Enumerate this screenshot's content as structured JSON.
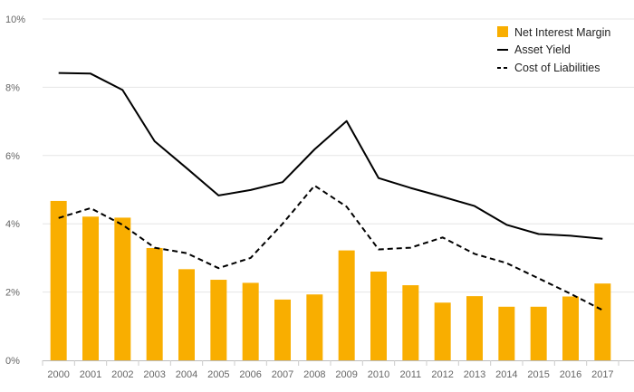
{
  "chart_data": {
    "type": "bar",
    "title": "",
    "xlabel": "",
    "ylabel": "",
    "ylim": [
      0,
      10
    ],
    "y_ticks": [
      "0%",
      "2%",
      "4%",
      "6%",
      "8%",
      "10%"
    ],
    "y_tick_values": [
      0,
      2,
      4,
      6,
      8,
      10
    ],
    "grid": true,
    "legend_position": "top-right",
    "categories": [
      "2000",
      "2001",
      "2002",
      "2003",
      "2004",
      "2005",
      "2006",
      "2007",
      "2008",
      "2009",
      "2010",
      "2011",
      "2012",
      "2013",
      "2014",
      "2015",
      "2016",
      "2017"
    ],
    "series": [
      {
        "name": "Net Interest Margin",
        "type": "bar",
        "color": "#F9AE00",
        "values": [
          4.67,
          4.21,
          4.18,
          3.29,
          2.67,
          2.36,
          2.27,
          1.78,
          1.93,
          3.22,
          2.6,
          2.2,
          1.69,
          1.88,
          1.57,
          1.57,
          1.87,
          2.25
        ]
      },
      {
        "name": "Asset Yield",
        "type": "line",
        "style": "solid",
        "color": "#000000",
        "values": [
          8.42,
          8.4,
          7.92,
          6.42,
          5.63,
          4.83,
          4.99,
          5.22,
          6.18,
          7.01,
          5.34,
          5.05,
          4.79,
          4.52,
          3.97,
          3.7,
          3.65,
          3.56
        ]
      },
      {
        "name": "Cost of Liabilities",
        "type": "line",
        "style": "dashed",
        "color": "#000000",
        "values": [
          4.17,
          4.46,
          3.97,
          3.3,
          3.14,
          2.7,
          3.0,
          4.0,
          5.12,
          4.5,
          3.25,
          3.3,
          3.6,
          3.12,
          2.85,
          2.4,
          1.95,
          1.47
        ]
      }
    ]
  }
}
